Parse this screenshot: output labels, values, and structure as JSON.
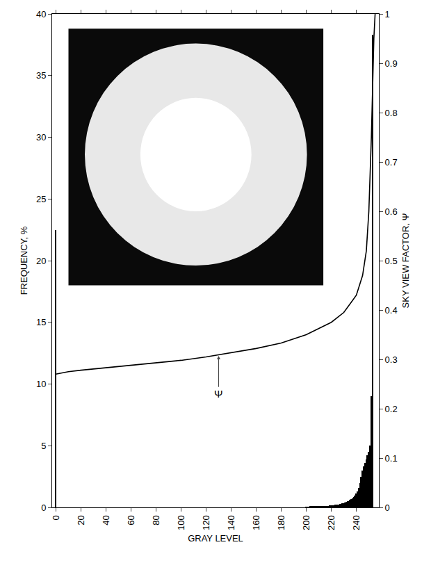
{
  "chart_data": {
    "type": "bar",
    "xlabel": "GRAY LEVEL",
    "ylabel": "FREQUENCY, %",
    "y2label": "SKY VIEW FACTOR, Ψ",
    "xlim": [
      -3,
      258
    ],
    "xticks": [
      0,
      20,
      40,
      60,
      80,
      100,
      120,
      140,
      160,
      180,
      200,
      220,
      240
    ],
    "ylim": [
      0,
      40
    ],
    "yticks": [
      0,
      5,
      10,
      15,
      20,
      25,
      30,
      35,
      40
    ],
    "y2lim": [
      0,
      1
    ],
    "y2ticks": [
      0,
      0.1,
      0.2,
      0.3,
      0.4,
      0.5,
      0.6,
      0.7,
      0.8,
      0.9,
      1
    ],
    "grid": false,
    "series": [
      {
        "type": "bar",
        "color": "#000000",
        "x": [
          0,
          200,
          201,
          202,
          203,
          204,
          205,
          206,
          207,
          208,
          209,
          210,
          211,
          212,
          213,
          214,
          215,
          216,
          217,
          218,
          219,
          220,
          221,
          222,
          223,
          224,
          225,
          226,
          227,
          228,
          229,
          230,
          231,
          232,
          233,
          234,
          235,
          236,
          237,
          238,
          239,
          240,
          241,
          242,
          243,
          244,
          245,
          246,
          247,
          248,
          249,
          250,
          251,
          252,
          253
        ],
        "values": [
          22.5,
          0.05,
          0.05,
          0.05,
          0.06,
          0.06,
          0.06,
          0.07,
          0.07,
          0.08,
          0.08,
          0.09,
          0.09,
          0.1,
          0.1,
          0.11,
          0.12,
          0.12,
          0.13,
          0.14,
          0.15,
          0.16,
          0.17,
          0.18,
          0.2,
          0.21,
          0.23,
          0.25,
          0.27,
          0.3,
          0.33,
          0.36,
          0.4,
          0.44,
          0.48,
          0.53,
          0.6,
          0.68,
          0.76,
          0.86,
          0.98,
          1.1,
          1.3,
          1.6,
          2.0,
          2.5,
          3.0,
          3.3,
          3.6,
          3.9,
          4.2,
          4.5,
          5.0,
          9.0,
          38.3
        ]
      },
      {
        "type": "line",
        "axis": "y2",
        "color": "#000000",
        "x": [
          0,
          10,
          20,
          40,
          60,
          80,
          100,
          120,
          140,
          160,
          180,
          200,
          220,
          230,
          240,
          245,
          248,
          250,
          252,
          253,
          254,
          255
        ],
        "values": [
          0.27,
          0.275,
          0.278,
          0.283,
          0.288,
          0.293,
          0.298,
          0.305,
          0.313,
          0.322,
          0.333,
          0.35,
          0.375,
          0.395,
          0.43,
          0.47,
          0.52,
          0.6,
          0.75,
          0.85,
          0.95,
          1.0
        ]
      }
    ],
    "annotations": [
      {
        "text": "Ψ",
        "x": 130,
        "y": 0.307,
        "axis": "y2",
        "text_y": 0.23
      }
    ]
  }
}
